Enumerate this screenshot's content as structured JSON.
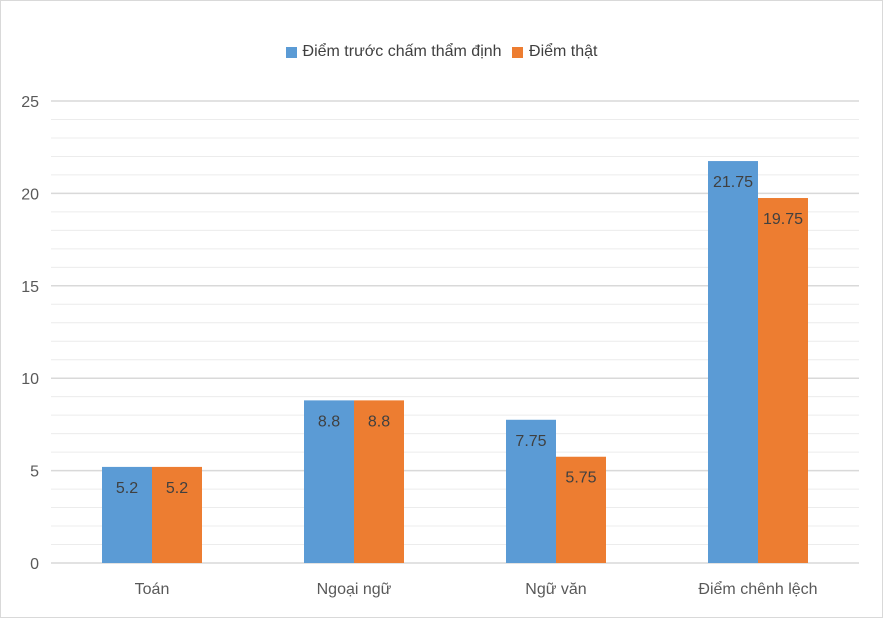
{
  "chart_data": {
    "type": "bar",
    "title": "",
    "xlabel": "",
    "ylabel": "",
    "categories": [
      "Toán",
      "Ngoại ngữ",
      "Ngữ văn",
      "Điểm chênh lệch"
    ],
    "series": [
      {
        "name": "Điểm trước chấm thẩm định",
        "color": "#5B9BD5",
        "values": [
          5.2,
          8.8,
          7.75,
          21.75
        ],
        "labels": [
          "5.2",
          "8.8",
          "7.75",
          "21.75"
        ]
      },
      {
        "name": "Điểm thật",
        "color": "#ED7D31",
        "values": [
          5.2,
          8.8,
          5.75,
          19.75
        ],
        "labels": [
          "5.2",
          "8.8",
          "5.75",
          "19.75"
        ]
      }
    ],
    "ylim": [
      0,
      25
    ],
    "yticks": [
      "0",
      "5",
      "10",
      "15",
      "20",
      "25"
    ],
    "minor_grid_step": 1,
    "grid": true,
    "legend_position": "top"
  }
}
